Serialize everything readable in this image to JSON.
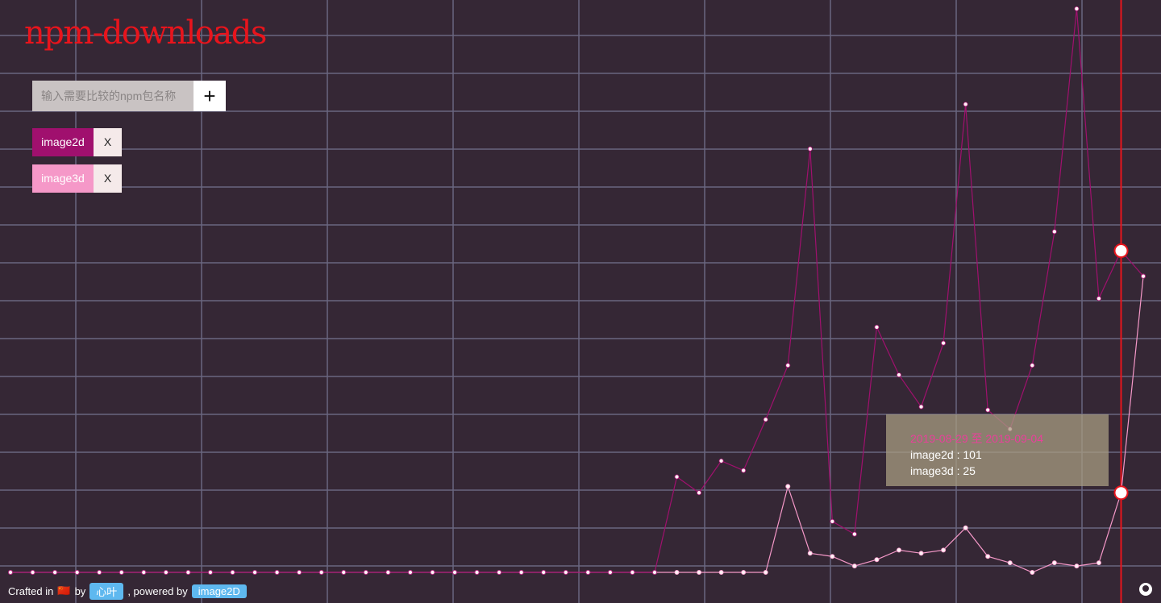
{
  "header": {
    "title": "npm-downloads",
    "placeholder": "输入需要比较的npm包名称",
    "add": "+",
    "remove": "X"
  },
  "chart_data": {
    "type": "line",
    "series": [
      {
        "name": "image2d",
        "color": "#a0106e",
        "values": [
          0,
          0,
          0,
          0,
          0,
          0,
          0,
          0,
          0,
          0,
          0,
          0,
          0,
          0,
          0,
          0,
          0,
          0,
          0,
          0,
          0,
          0,
          0,
          0,
          0,
          0,
          0,
          0,
          0,
          0,
          30,
          25,
          35,
          32,
          48,
          65,
          133,
          16,
          12,
          77,
          62,
          52,
          72,
          147,
          51,
          45,
          65,
          107,
          177,
          86,
          101,
          93
        ]
      },
      {
        "name": "image3d",
        "color": "#f598c8",
        "values": [
          0,
          0,
          0,
          0,
          0,
          0,
          0,
          0,
          0,
          0,
          0,
          0,
          0,
          0,
          0,
          0,
          0,
          0,
          0,
          0,
          0,
          0,
          0,
          0,
          0,
          0,
          0,
          0,
          0,
          0,
          0,
          0,
          0,
          0,
          0,
          27,
          6,
          5,
          2,
          4,
          7,
          6,
          7,
          14,
          5,
          3,
          0,
          3,
          2,
          3,
          25,
          93
        ]
      }
    ],
    "tooltip_title": "2019-08-29 至 2019-09-04"
  },
  "footer": {
    "crafted": "Crafted in",
    "flag": "🇨🇳",
    "by": "by",
    "author": "心叶",
    "powered": ", powered by",
    "lib": "image2D"
  }
}
